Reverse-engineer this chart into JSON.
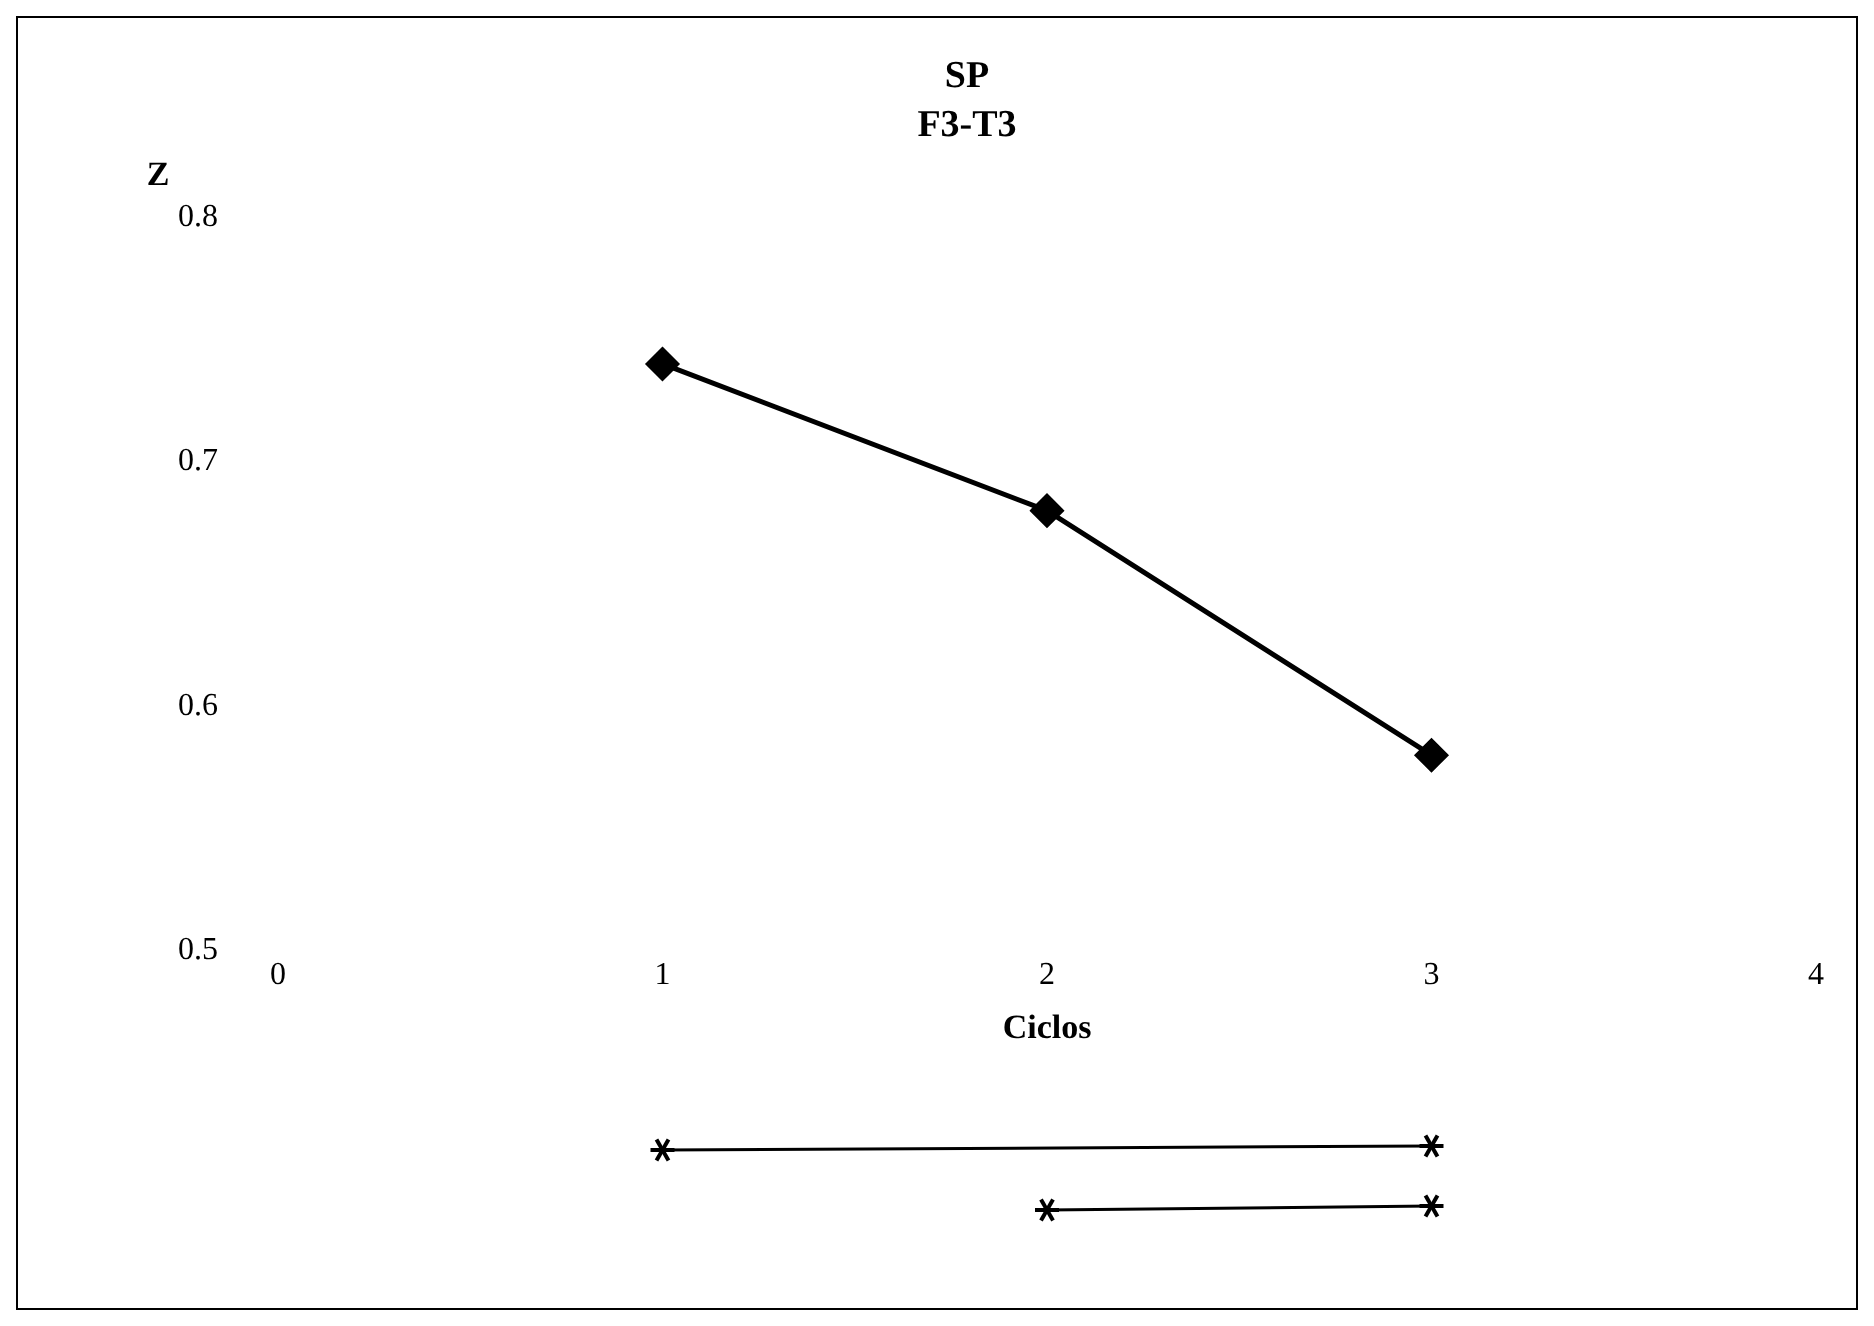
{
  "chart_data": {
    "type": "line",
    "title": "SP",
    "subtitle": "F3-T3",
    "xlabel": "Ciclos",
    "ylabel": "Z",
    "x": [
      1,
      2,
      3
    ],
    "series": [
      {
        "color": "#000000",
        "values": [
          0.74,
          0.68,
          0.58
        ]
      }
    ],
    "xlim": [
      0,
      4
    ],
    "xticks": [
      0,
      1,
      2,
      3,
      4
    ],
    "ylim": [
      0.5,
      0.8
    ],
    "yticks": [
      0.5,
      0.6,
      0.7,
      0.8
    ],
    "grid": false,
    "legend": false,
    "marker": "diamond",
    "line_style": "solid"
  }
}
